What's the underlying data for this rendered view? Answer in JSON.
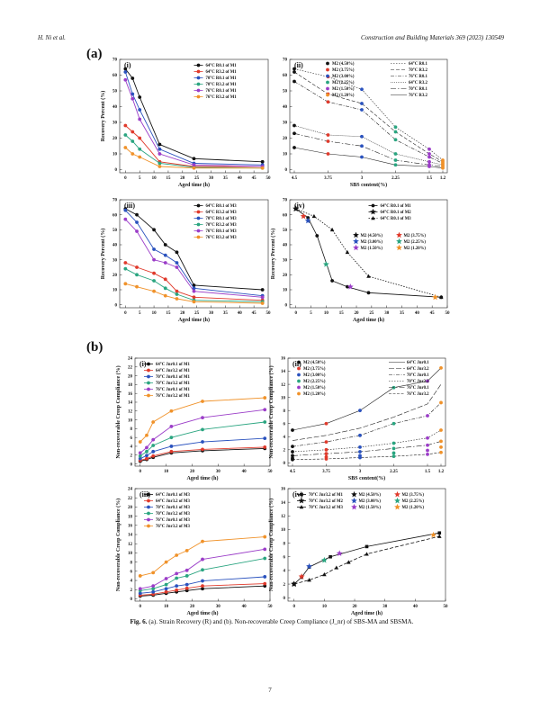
{
  "header": {
    "left": "H. Ni et al.",
    "right": "Construction and Building Materials 369 (2023) 130549"
  },
  "section_tags": [
    "(a)",
    "(b)"
  ],
  "caption": {
    "label": "Fig. 6.",
    "text": "(a). Strain Recovery (R) and (b). Non-recoverable Creep Compliance (J_nr) of SBS-MA and SBSMA."
  },
  "page_number": "7",
  "chart_data": [
    {
      "id": "a-i",
      "panel_label": "(i)",
      "type": "line",
      "xlabel": "Aged time (h)",
      "ylabel": "Recovery Percent (%)",
      "xlim": [
        -2,
        50
      ],
      "ylim": [
        -2,
        70
      ],
      "xticks": [
        0,
        5,
        10,
        15,
        20,
        25,
        30,
        35,
        40,
        45,
        50
      ],
      "yticks": [
        0,
        10,
        20,
        30,
        40,
        50,
        60,
        70
      ],
      "x": [
        0,
        2.5,
        5,
        12,
        24,
        48
      ],
      "series": [
        {
          "name": "64°C R0.1 of M1",
          "color": "#111111",
          "values": [
            64,
            58,
            46,
            16,
            7,
            5
          ]
        },
        {
          "name": "64°C R3.2 of M1",
          "color": "#e03a2c",
          "values": [
            28,
            24,
            20,
            5,
            2,
            2
          ]
        },
        {
          "name": "70°C R0.1 of M1",
          "color": "#2a52be",
          "values": [
            62,
            48,
            38,
            13,
            4,
            3
          ]
        },
        {
          "name": "70°C R3.2 of M1",
          "color": "#2aa580",
          "values": [
            22,
            18,
            13,
            4,
            1.5,
            1
          ]
        },
        {
          "name": "76°C R0.1 of M1",
          "color": "#9b3dc8",
          "values": [
            57,
            45,
            32,
            10,
            3,
            2
          ]
        },
        {
          "name": "76°C R3.2 of M1",
          "color": "#f0922a",
          "values": [
            14,
            10,
            8,
            2,
            1,
            1
          ]
        }
      ]
    },
    {
      "id": "a-ii",
      "panel_label": "(ii)",
      "type": "scatter",
      "xlabel": "SBS content(%)",
      "ylabel": "",
      "xlim": [
        4.6,
        1.1
      ],
      "ylim": [
        -2,
        70
      ],
      "xticks": [
        4.5,
        3.75,
        3,
        2.25,
        1.5,
        1.2
      ],
      "xtick_labels": [
        "4.5",
        "3.75",
        "3",
        "2.25",
        "1.5",
        "1.2"
      ],
      "yticks": [
        0,
        10,
        20,
        30,
        40,
        50,
        60,
        70
      ],
      "markers": [
        {
          "name": "M2 (4.50%)",
          "color": "#111111",
          "x": 4.5,
          "values": [
            64,
            62,
            56,
            28,
            23,
            14
          ]
        },
        {
          "name": "M2 (3.75%)",
          "color": "#e03a2c",
          "x": 3.75,
          "values": [
            59,
            48,
            43,
            22,
            18,
            10
          ]
        },
        {
          "name": "M2 (3.00%)",
          "color": "#2a52be",
          "x": 3.0,
          "values": [
            51,
            42,
            38,
            21,
            15,
            8
          ]
        },
        {
          "name": "M2 (2.25%)",
          "color": "#2aa580",
          "x": 2.25,
          "values": [
            27,
            24,
            19,
            10,
            6,
            3
          ]
        },
        {
          "name": "M2 (1.50%)",
          "color": "#9b3dc8",
          "x": 1.5,
          "values": [
            13,
            10,
            8,
            5,
            3,
            2
          ]
        },
        {
          "name": "M2 (1.20%)",
          "color": "#f0922a",
          "x": 1.2,
          "values": [
            6,
            5,
            4,
            3,
            2,
            1
          ]
        }
      ],
      "lines": [
        {
          "name": "64°C R0.1",
          "dash": "1.5,1.5",
          "values": [
            64,
            59,
            51,
            27,
            13,
            6
          ]
        },
        {
          "name": "70°C R3.2",
          "dash": "4,2",
          "values": [
            62,
            48,
            42,
            24,
            10,
            5
          ]
        },
        {
          "name": "76°C R0.1",
          "dash": "4,1.5,1,1.5",
          "values": [
            56,
            43,
            38,
            19,
            8,
            4
          ]
        },
        {
          "name": "64°C R3.2",
          "dash": "1,1",
          "values": [
            28,
            22,
            21,
            10,
            5,
            3
          ]
        },
        {
          "name": "70°C R0.1",
          "dash": "6,2,1.5,2",
          "values": [
            23,
            18,
            15,
            6,
            3,
            2
          ]
        },
        {
          "name": "76°C R3.2",
          "dash": "",
          "values": [
            14,
            10,
            8,
            3,
            2,
            1
          ]
        }
      ]
    },
    {
      "id": "a-iii",
      "panel_label": "(iii)",
      "type": "line",
      "xlabel": "Aged time (h)",
      "ylabel": "Recovery Percent (%)",
      "xlim": [
        -2,
        50
      ],
      "ylim": [
        -2,
        70
      ],
      "xticks": [
        0,
        5,
        10,
        15,
        20,
        25,
        30,
        35,
        40,
        45,
        50
      ],
      "yticks": [
        0,
        10,
        20,
        30,
        40,
        50,
        60,
        70
      ],
      "x": [
        0,
        4,
        10,
        14,
        18,
        24,
        48
      ],
      "series": [
        {
          "name": "64°C R0.1 of M3",
          "color": "#111111",
          "values": [
            64,
            60,
            50,
            40,
            35,
            13,
            10
          ]
        },
        {
          "name": "64°C R3.2 of M3",
          "color": "#e03a2c",
          "values": [
            28,
            25,
            21,
            17,
            9,
            5,
            3
          ]
        },
        {
          "name": "70°C R0.1 of M3",
          "color": "#2a52be",
          "values": [
            63,
            55,
            37,
            33,
            28,
            11,
            6
          ]
        },
        {
          "name": "70°C R3.2 of M3",
          "color": "#2aa580",
          "values": [
            24,
            20,
            16,
            11,
            7,
            3,
            2
          ]
        },
        {
          "name": "76°C R0.1 of M3",
          "color": "#9b3dc8",
          "values": [
            57,
            49,
            30,
            28,
            25,
            9,
            5
          ]
        },
        {
          "name": "76°C R3.2 of M3",
          "color": "#f0922a",
          "values": [
            14,
            12,
            9,
            6,
            4,
            2,
            1
          ]
        }
      ]
    },
    {
      "id": "a-iv",
      "panel_label": "(iv)",
      "type": "line",
      "xlabel": "Aged time (h)",
      "ylabel": "Recovery Percent (%)",
      "xlim": [
        -2,
        50
      ],
      "ylim": [
        -2,
        70
      ],
      "xticks": [
        0,
        5,
        10,
        15,
        20,
        25,
        30,
        35,
        40,
        45,
        50
      ],
      "yticks": [
        0,
        10,
        20,
        30,
        40,
        50,
        60,
        70
      ],
      "series": [
        {
          "name": "64°C R0.1 of M1",
          "color": "#111111",
          "marker": "circle",
          "dash": "",
          "x": [
            0,
            4,
            7,
            12,
            17,
            24,
            48
          ],
          "values": [
            64,
            58,
            46,
            16,
            12,
            8,
            5
          ]
        },
        {
          "name": "64°C R0.1 of M2",
          "color": "#111111",
          "marker": "star",
          "dash": "",
          "x": [
            0
          ],
          "values": [
            64
          ]
        },
        {
          "name": "64°C R0.1 of M3",
          "color": "#111111",
          "marker": "triangle",
          "dash": "1.5,1.5",
          "x": [
            0,
            6,
            12,
            17,
            24,
            48
          ],
          "values": [
            64,
            59,
            50,
            35,
            19,
            5
          ]
        }
      ],
      "stars": [
        {
          "name": "M2 (4.50%)",
          "color": "#111111",
          "x": 0,
          "y": 64
        },
        {
          "name": "M2 (3.75%)",
          "color": "#e03a2c",
          "x": 2.5,
          "y": 59
        },
        {
          "name": "M2 (3.00%)",
          "color": "#2a52be",
          "x": 4,
          "y": 56
        },
        {
          "name": "M2 (2.25%)",
          "color": "#2aa580",
          "x": 10,
          "y": 27
        },
        {
          "name": "M2 (1.50%)",
          "color": "#9b3dc8",
          "x": 18,
          "y": 12
        },
        {
          "name": "M2 (1.20%)",
          "color": "#f0922a",
          "x": 46,
          "y": 5
        }
      ]
    },
    {
      "id": "b-i",
      "panel_label": "(i)",
      "type": "line",
      "xlabel": "Aged time (h)",
      "ylabel": "Non-recoverable Creep Compliance (%)",
      "xlim": [
        -2,
        50
      ],
      "ylim": [
        -0.5,
        24
      ],
      "xticks": [
        0,
        10,
        20,
        30,
        40,
        50
      ],
      "yticks": [
        0,
        2,
        4,
        6,
        8,
        10,
        12,
        14,
        16,
        18,
        20,
        22,
        24
      ],
      "x": [
        0,
        2.5,
        5,
        12,
        24,
        48
      ],
      "series": [
        {
          "name": "64°C Jnr0.1 of M1",
          "color": "#111111",
          "values": [
            0.6,
            1.0,
            1.5,
            2.5,
            3.0,
            3.5
          ]
        },
        {
          "name": "64°C Jnr3.2 of M1",
          "color": "#e03a2c",
          "values": [
            0.8,
            1.2,
            1.8,
            2.8,
            3.3,
            3.8
          ]
        },
        {
          "name": "70°C Jnr0.1 of M1",
          "color": "#2a52be",
          "values": [
            1.2,
            1.9,
            2.8,
            4.0,
            5.0,
            5.8
          ]
        },
        {
          "name": "70°C Jnr3.2 of M1",
          "color": "#2aa580",
          "values": [
            1.8,
            2.8,
            4.2,
            6.0,
            7.8,
            9.5
          ]
        },
        {
          "name": "76°C Jnr0.1 of M1",
          "color": "#9b3dc8",
          "values": [
            2.5,
            3.7,
            5.5,
            8.5,
            10.5,
            12.3
          ]
        },
        {
          "name": "76°C Jnr3.2 of M1",
          "color": "#f0922a",
          "values": [
            5.0,
            6.5,
            9.5,
            12.0,
            14.2,
            15.0
          ]
        }
      ]
    },
    {
      "id": "b-ii",
      "panel_label": "(ii)",
      "type": "scatter",
      "xlabel": "SBS content(%)",
      "ylabel": "Non-recoverable Creep Compliance (%)",
      "xlim": [
        4.6,
        1.1
      ],
      "ylim": [
        -0.5,
        16
      ],
      "xticks": [
        4.5,
        3.75,
        3,
        2.25,
        1.5,
        1.2
      ],
      "xtick_labels": [
        "4.5",
        "3.75",
        "3",
        "2.25",
        "1.5",
        "1.2"
      ],
      "yticks": [
        0,
        2,
        4,
        6,
        8,
        10,
        12,
        14,
        16
      ],
      "markers": [
        {
          "name": "M2 (4.50%)",
          "color": "#111111",
          "x": 4.5,
          "values": [
            0.5,
            0.7,
            1.1,
            1.7,
            2.5,
            5.0
          ]
        },
        {
          "name": "M2 (3.75%)",
          "color": "#e03a2c",
          "x": 3.75,
          "values": [
            0.6,
            0.9,
            1.4,
            2.0,
            3.2,
            6.0
          ]
        },
        {
          "name": "M2 (3.00%)",
          "color": "#2a52be",
          "x": 3.0,
          "values": [
            0.8,
            1.1,
            1.7,
            2.4,
            4.2,
            8.0
          ]
        },
        {
          "name": "M2 (2.25%)",
          "color": "#2aa580",
          "x": 2.25,
          "values": [
            1.0,
            1.5,
            2.2,
            3.0,
            6.0,
            11.5
          ]
        },
        {
          "name": "M2 (1.50%)",
          "color": "#9b3dc8",
          "x": 1.5,
          "values": [
            1.3,
            1.9,
            2.7,
            3.8,
            7.2,
            12.5
          ]
        },
        {
          "name": "M2 (1.20%)",
          "color": "#f0922a",
          "x": 1.2,
          "values": [
            1.6,
            2.4,
            3.3,
            5.0,
            9.2,
            14.5
          ]
        }
      ],
      "lines": [
        {
          "name": "64°C Jnr0.1",
          "dash": "",
          "values": [
            5.0,
            6.0,
            8.0,
            11.5,
            12.5,
            14.5
          ]
        },
        {
          "name": "64°C Jnr3.2",
          "dash": "6,2",
          "values": [
            3.4,
            4.2,
            5.3,
            7.0,
            9.0,
            12.0
          ]
        },
        {
          "name": "70°C Jnr0.1",
          "dash": "4,1.5,1,1.5",
          "values": [
            2.5,
            3.2,
            4.2,
            6.0,
            7.2,
            9.2
          ]
        },
        {
          "name": "70°C Jnr3.2",
          "dash": "1.5,1.5",
          "values": [
            1.7,
            2.0,
            2.4,
            3.0,
            3.8,
            5.0
          ]
        },
        {
          "name": "76°C Jnr0.1",
          "dash": "6,2,1.5,2",
          "values": [
            1.1,
            1.4,
            1.7,
            2.2,
            2.7,
            3.3
          ]
        },
        {
          "name": "76°C Jnr3.2",
          "dash": "3,1.5",
          "values": [
            0.5,
            0.6,
            0.8,
            1.0,
            1.3,
            1.6
          ]
        }
      ]
    },
    {
      "id": "b-iii",
      "panel_label": "(iii)",
      "type": "line",
      "xlabel": "Aged time (h)",
      "ylabel": "Non-recoverable Creep Compliance (%)",
      "xlim": [
        -2,
        50
      ],
      "ylim": [
        -0.5,
        24
      ],
      "xticks": [
        0,
        10,
        20,
        30,
        40,
        50
      ],
      "yticks": [
        0,
        2,
        4,
        6,
        8,
        10,
        12,
        14,
        16,
        18,
        20,
        22,
        24
      ],
      "x": [
        0,
        5,
        10,
        14,
        18,
        24,
        48
      ],
      "series": [
        {
          "name": "64°C Jnr0.1 of M3",
          "color": "#111111",
          "values": [
            0.6,
            0.8,
            1.2,
            1.5,
            1.8,
            2.2,
            2.8
          ]
        },
        {
          "name": "64°C Jnr3.2 of M3",
          "color": "#e03a2c",
          "values": [
            0.8,
            1.0,
            1.5,
            1.9,
            2.3,
            2.8,
            3.3
          ]
        },
        {
          "name": "70°C Jnr0.1 of M3",
          "color": "#2a52be",
          "values": [
            1.2,
            1.5,
            2.2,
            2.8,
            3.1,
            3.9,
            4.8
          ]
        },
        {
          "name": "70°C Jnr3.2 of M3",
          "color": "#2aa580",
          "values": [
            1.8,
            2.2,
            3.1,
            4.5,
            5.0,
            6.3,
            8.8
          ]
        },
        {
          "name": "76°C Jnr0.1 of M3",
          "color": "#9b3dc8",
          "values": [
            2.2,
            2.8,
            4.4,
            5.5,
            6.2,
            8.6,
            10.8
          ]
        },
        {
          "name": "76°C Jnr3.2 of M3",
          "color": "#f0922a",
          "values": [
            5.0,
            5.7,
            8.0,
            9.5,
            10.5,
            12.5,
            13.5
          ]
        }
      ]
    },
    {
      "id": "b-iv",
      "panel_label": "(iv)",
      "type": "line",
      "xlabel": "Aged time (h)",
      "ylabel": "Non-recoverable Creep Compliance (%)",
      "xlim": [
        -2,
        50
      ],
      "ylim": [
        -0.5,
        16
      ],
      "xticks": [
        0,
        10,
        20,
        30,
        40,
        50
      ],
      "yticks": [
        0,
        2,
        4,
        6,
        8,
        10,
        12,
        14,
        16
      ],
      "series": [
        {
          "name": "70°C Jnr3.2 of M1",
          "color": "#111111",
          "marker": "square",
          "dash": "",
          "x": [
            0,
            2.5,
            5,
            12,
            24,
            48
          ],
          "values": [
            2.0,
            3.0,
            4.5,
            6.0,
            7.5,
            9.5
          ]
        },
        {
          "name": "70°C Jnr3.2 of M2",
          "color": "#111111",
          "marker": "star",
          "dash": "",
          "x": [
            0
          ],
          "values": [
            2.0
          ]
        },
        {
          "name": "70°C Jnr3.2 of M3",
          "color": "#111111",
          "marker": "triangle",
          "dash": "4,2",
          "x": [
            0,
            5,
            10,
            14,
            18,
            24,
            48
          ],
          "values": [
            2.0,
            2.6,
            3.4,
            4.4,
            5.2,
            6.4,
            9.0
          ]
        }
      ],
      "stars": [
        {
          "name": "M2 (4.50%)",
          "color": "#111111",
          "x": 0,
          "y": 2.0
        },
        {
          "name": "M2 (3.75%)",
          "color": "#e03a2c",
          "x": 2.5,
          "y": 3.1
        },
        {
          "name": "M2 (3.00%)",
          "color": "#2a52be",
          "x": 5,
          "y": 4.6
        },
        {
          "name": "M2 (2.25%)",
          "color": "#2aa580",
          "x": 10,
          "y": 5.5
        },
        {
          "name": "M2 (1.50%)",
          "color": "#9b3dc8",
          "x": 15,
          "y": 6.5
        },
        {
          "name": "M2 (1.20%)",
          "color": "#f0922a",
          "x": 46,
          "y": 9.2
        }
      ]
    }
  ]
}
